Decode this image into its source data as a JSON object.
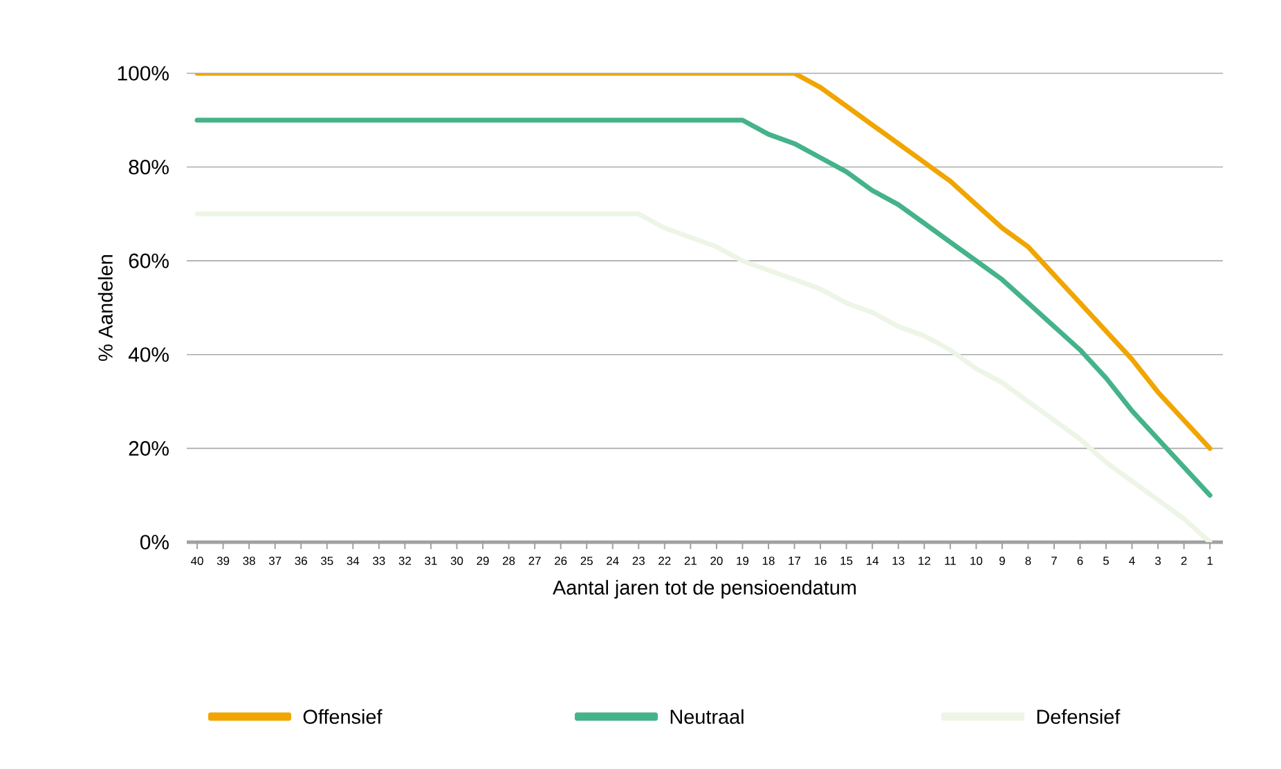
{
  "chart_data": {
    "type": "line",
    "xlabel": "Aantal jaren tot de pensioendatum",
    "ylabel": "% Aandelen",
    "categories": [
      "40",
      "39",
      "38",
      "37",
      "36",
      "35",
      "34",
      "33",
      "32",
      "31",
      "30",
      "29",
      "28",
      "27",
      "26",
      "25",
      "24",
      "23",
      "22",
      "21",
      "20",
      "19",
      "18",
      "17",
      "16",
      "15",
      "14",
      "13",
      "12",
      "11",
      "10",
      "9",
      "8",
      "7",
      "6",
      "5",
      "4",
      "3",
      "2",
      "1"
    ],
    "ylim": [
      0,
      100
    ],
    "yticks": [
      {
        "value": 0,
        "label": "0%"
      },
      {
        "value": 20,
        "label": "20%"
      },
      {
        "value": 40,
        "label": "40%"
      },
      {
        "value": 60,
        "label": "60%"
      },
      {
        "value": 80,
        "label": "80%"
      },
      {
        "value": 100,
        "label": "100%"
      }
    ],
    "grid": "y",
    "legend": "bottom",
    "marker": "none",
    "line_style": "solid",
    "series": [
      {
        "name": "Offensief",
        "color": "#f0a500",
        "values": [
          100,
          100,
          100,
          100,
          100,
          100,
          100,
          100,
          100,
          100,
          100,
          100,
          100,
          100,
          100,
          100,
          100,
          100,
          100,
          100,
          100,
          100,
          100,
          100,
          97,
          93,
          89,
          85,
          81,
          77,
          72,
          67,
          63,
          57,
          51,
          45,
          39,
          32,
          26,
          20
        ]
      },
      {
        "name": "Neutraal",
        "color": "#45b38a",
        "values": [
          90,
          90,
          90,
          90,
          90,
          90,
          90,
          90,
          90,
          90,
          90,
          90,
          90,
          90,
          90,
          90,
          90,
          90,
          90,
          90,
          90,
          90,
          87,
          85,
          82,
          79,
          75,
          72,
          68,
          64,
          60,
          56,
          51,
          46,
          41,
          35,
          28,
          22,
          16,
          10
        ]
      },
      {
        "name": "Defensief",
        "color": "#edf5e6",
        "values": [
          70,
          70,
          70,
          70,
          70,
          70,
          70,
          70,
          70,
          70,
          70,
          70,
          70,
          70,
          70,
          70,
          70,
          70,
          67,
          65,
          63,
          60,
          58,
          56,
          54,
          51,
          49,
          46,
          44,
          41,
          37,
          34,
          30,
          26,
          22,
          17,
          13,
          9,
          5,
          0
        ]
      }
    ]
  }
}
